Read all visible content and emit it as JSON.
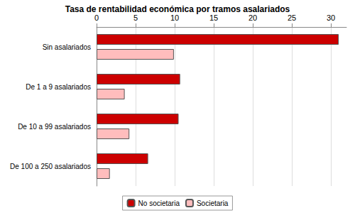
{
  "chart_data": {
    "type": "bar",
    "title": "Tasa de rentabilidad económica por tramos asalariados",
    "orientation": "horizontal",
    "categories": [
      "Sin asalariados",
      "De 1 a 9 asalariados",
      "De 10 a 99 asalariados",
      "De 100 a 250 asalariados"
    ],
    "series": [
      {
        "name": "No societaria",
        "color": "#cc0000",
        "values": [
          31,
          10.7,
          10.5,
          6.6
        ]
      },
      {
        "name": "Societaria",
        "color": "#ffbdbd",
        "values": [
          9.9,
          3.6,
          4.2,
          1.7
        ]
      }
    ],
    "xlim": [
      0,
      32
    ],
    "xticks": [
      0,
      5,
      10,
      15,
      20,
      25,
      30
    ],
    "grid": true,
    "legend": "bottom"
  }
}
